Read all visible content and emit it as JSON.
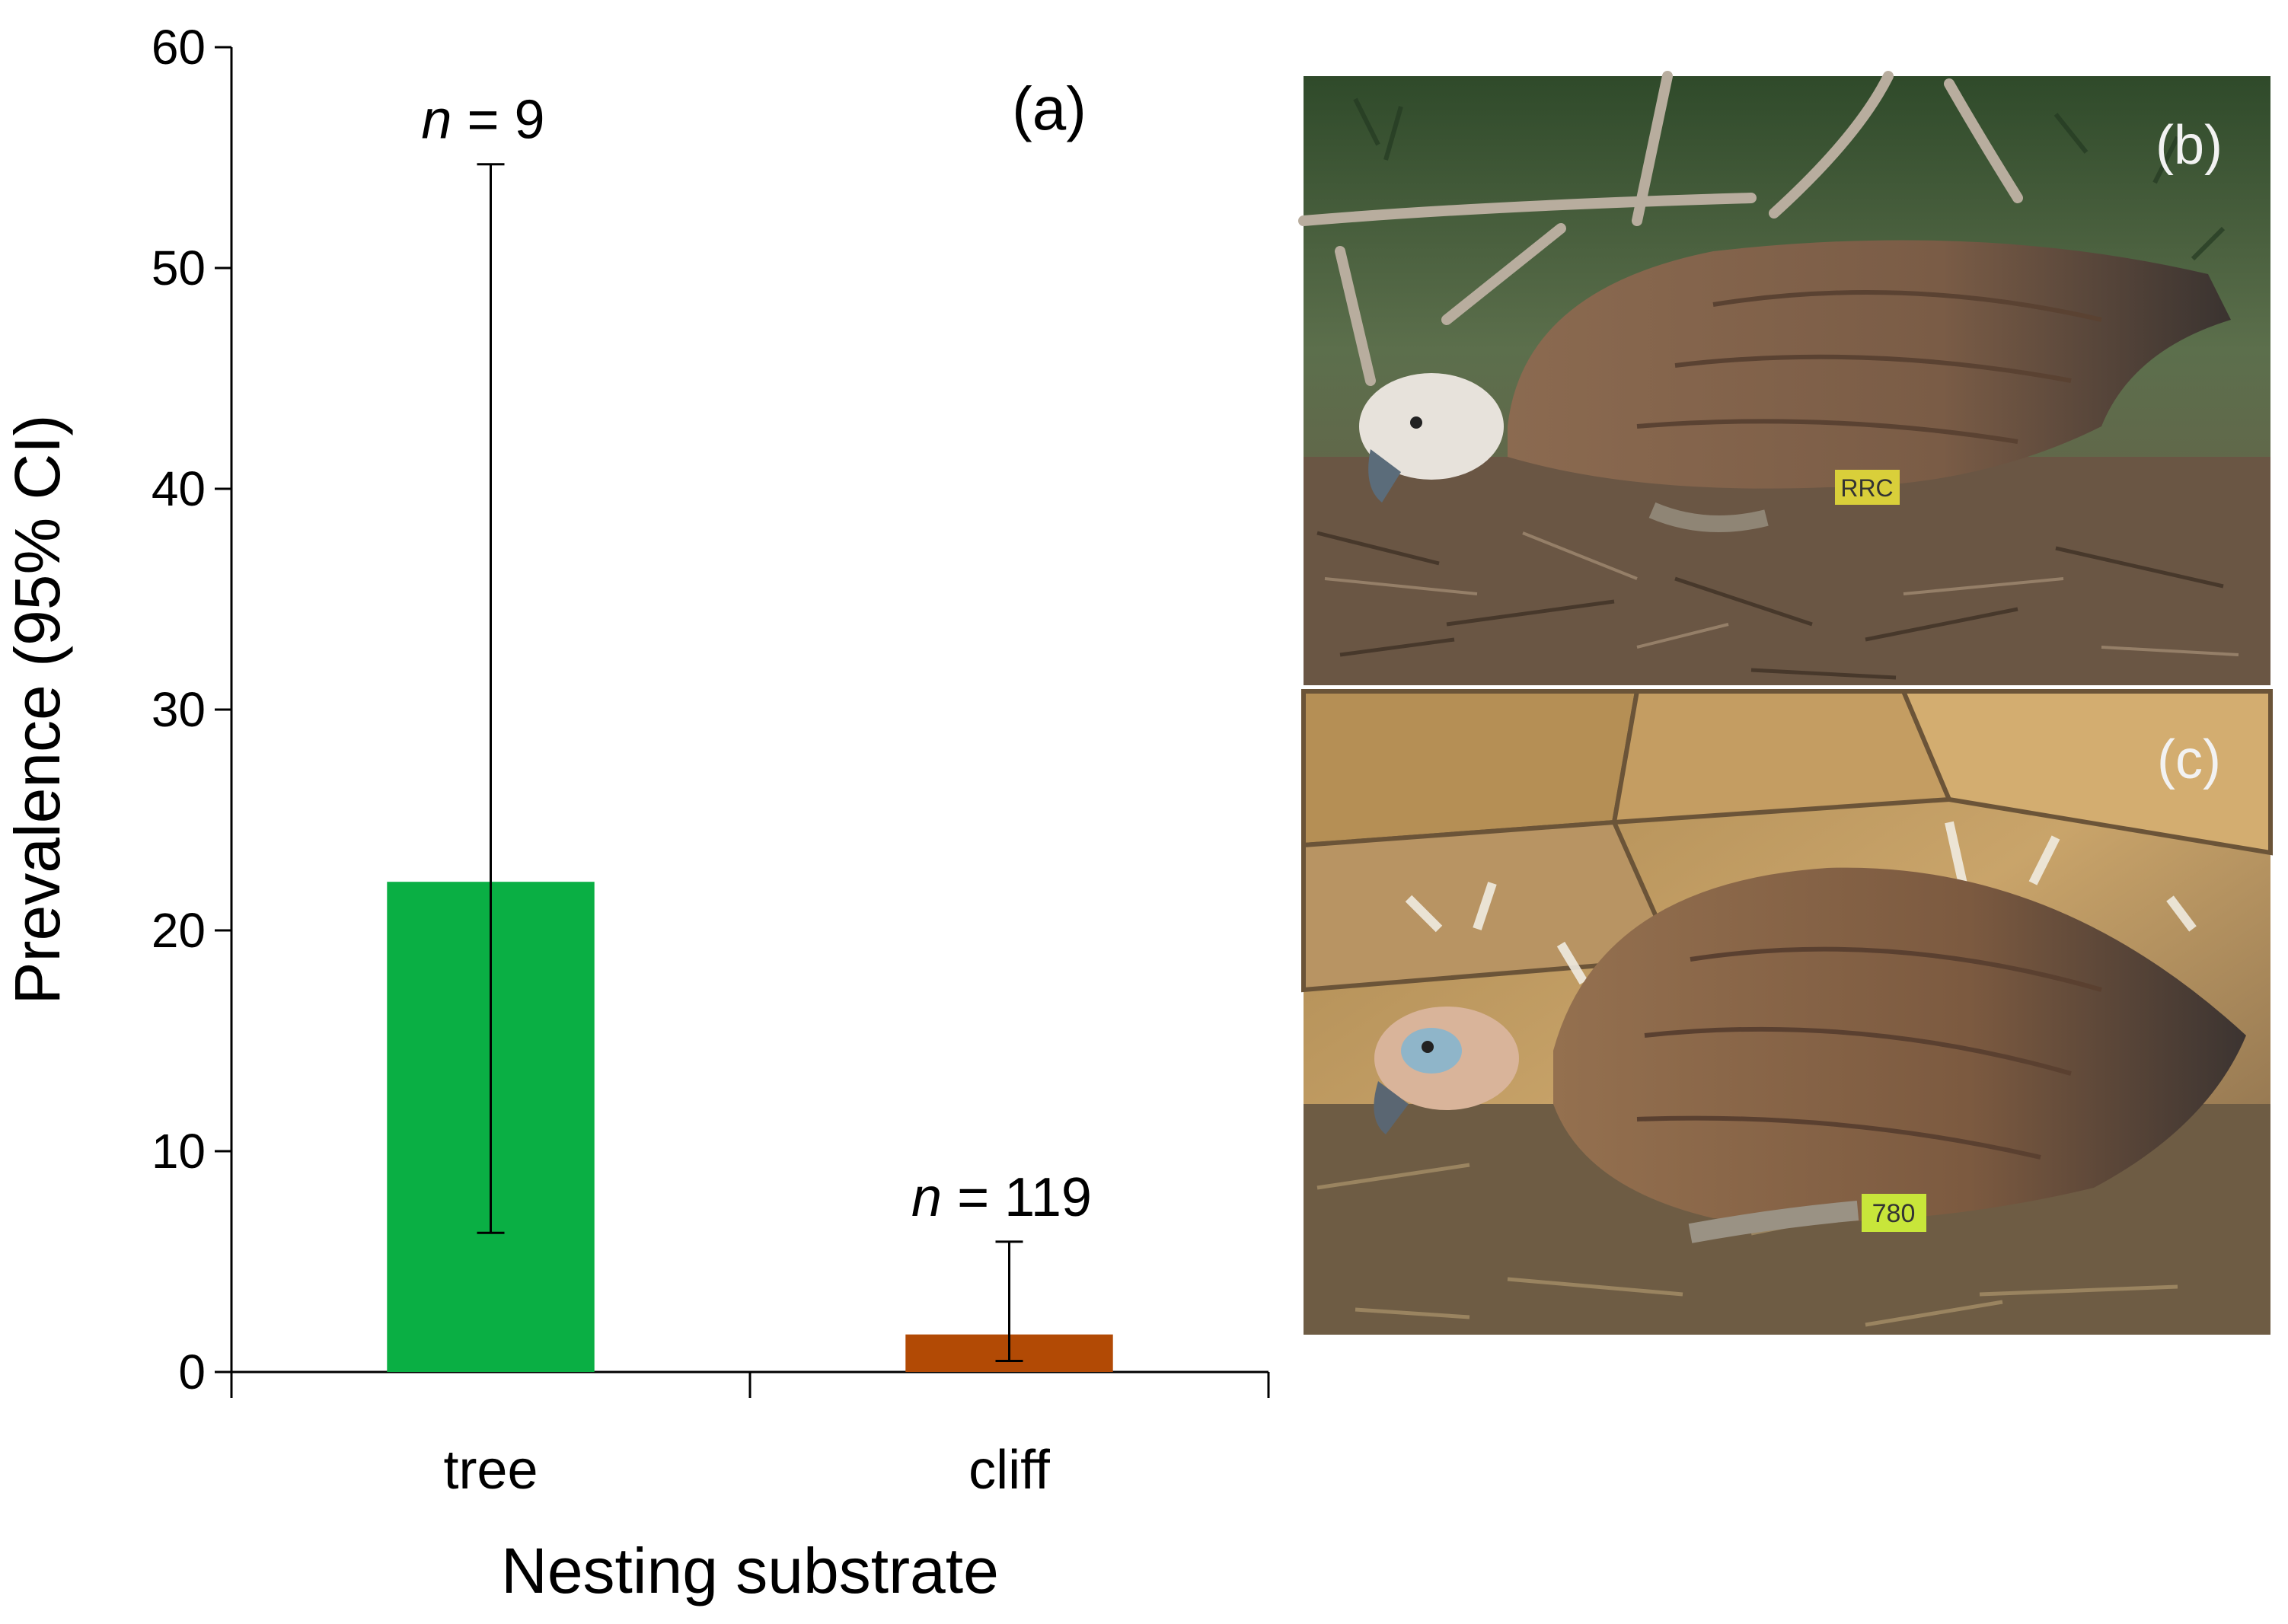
{
  "chart_data": {
    "type": "bar",
    "panel_label": "(a)",
    "categories": [
      "tree",
      "cliff"
    ],
    "values": [
      22.2,
      1.7
    ],
    "ci_lower": [
      6.3,
      0.5
    ],
    "ci_upper": [
      54.7,
      5.9
    ],
    "sample_sizes": [
      "n = 9",
      "n = 119"
    ],
    "sample_prefix": "n",
    "sample_values": [
      "= 9",
      "= 119"
    ],
    "ylabel": "Prevalence (95% CI)",
    "xlabel": "Nesting substrate",
    "ylim": [
      0,
      60
    ],
    "yticks": [
      0,
      10,
      20,
      30,
      40,
      50,
      60
    ],
    "bar_colors": [
      "#0aaf44",
      "#b24a05"
    ],
    "grid": false
  },
  "photos": [
    {
      "label": "(b)",
      "subject": "vulture-on-tree-nest",
      "ring_text": "RRC",
      "ring_color": "#d9cf3a"
    },
    {
      "label": "(c)",
      "subject": "vulture-on-cliff-nest",
      "ring_text": "780",
      "ring_color": "#c8e63a"
    }
  ]
}
